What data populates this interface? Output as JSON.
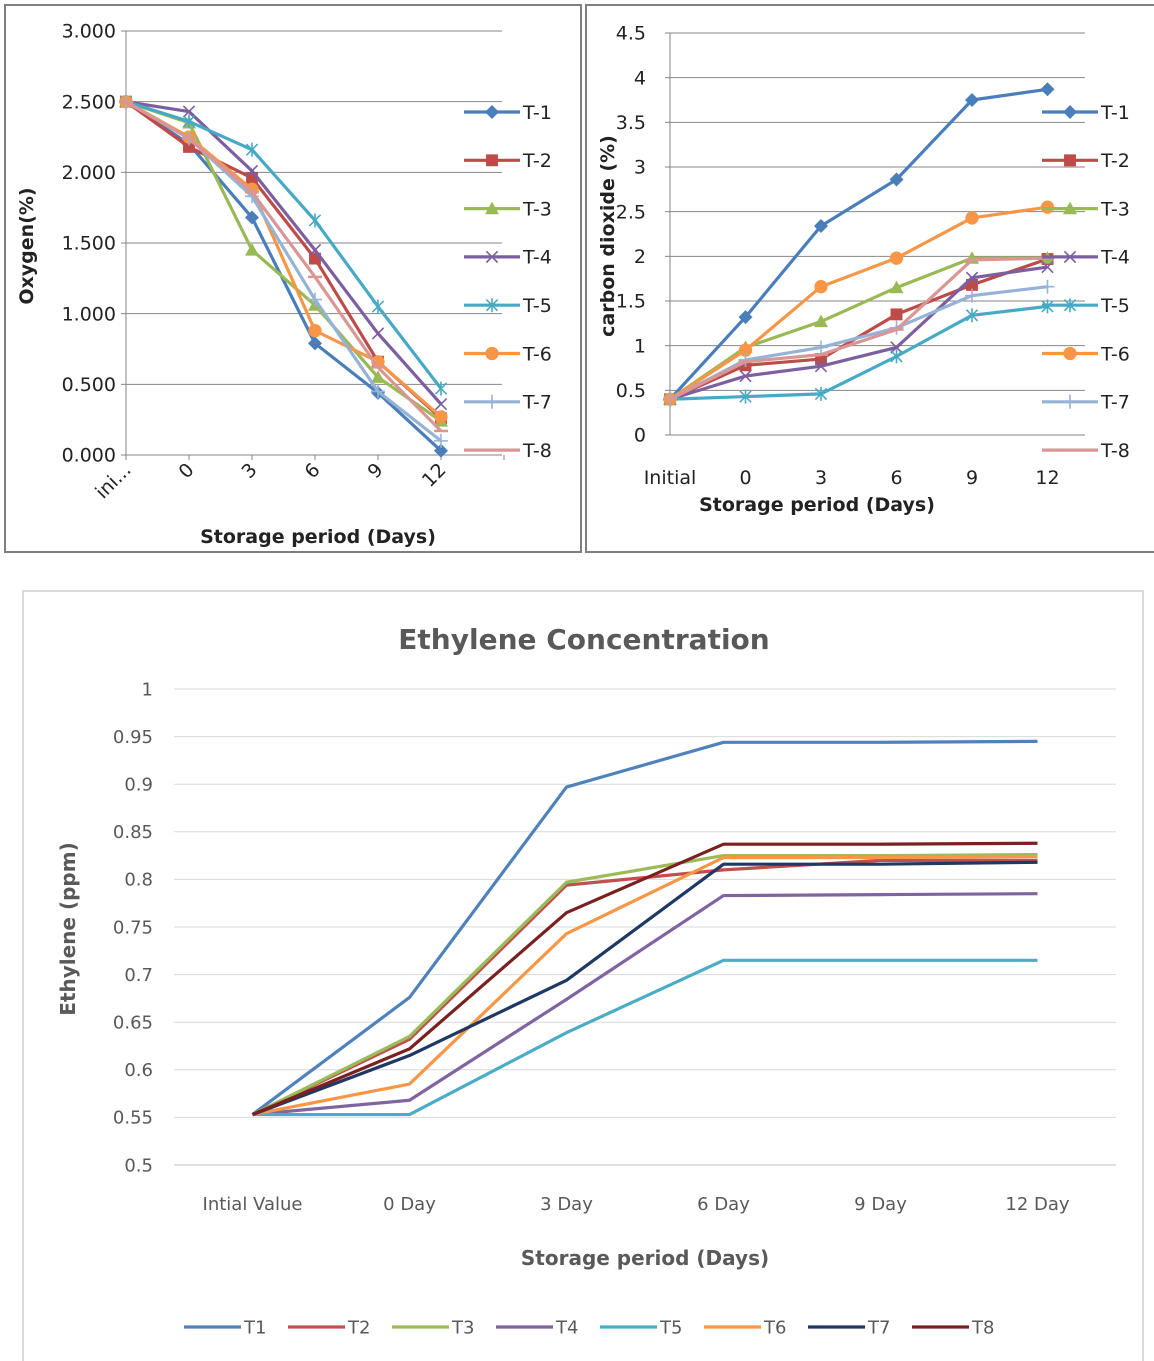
{
  "chart_data": [
    {
      "type": "line",
      "title": "",
      "xlabel": "Storage period (Days)",
      "ylabel": "Oxygen(%)",
      "categories": [
        "ini...",
        "0",
        "3",
        "6",
        "9",
        "12"
      ],
      "ylim": [
        0,
        3
      ],
      "yticks": [
        "0.000",
        "0.500",
        "1.000",
        "1.500",
        "2.000",
        "2.500",
        "3.000"
      ],
      "grid": true,
      "legend": "right",
      "markers": true,
      "series": [
        {
          "name": "T-1",
          "color": "#4a7ebb",
          "marker": "diamond",
          "values": [
            2.5,
            2.2,
            1.68,
            0.79,
            0.44,
            0.03
          ]
        },
        {
          "name": "T-2",
          "color": "#be4b48",
          "marker": "square",
          "values": [
            2.5,
            2.18,
            1.96,
            1.39,
            0.66,
            0.26
          ]
        },
        {
          "name": "T-3",
          "color": "#98b954",
          "marker": "triangle",
          "values": [
            2.5,
            2.35,
            1.45,
            1.06,
            0.55,
            0.24
          ]
        },
        {
          "name": "T-4",
          "color": "#7d5fa0",
          "marker": "x",
          "values": [
            2.5,
            2.43,
            2.01,
            1.45,
            0.86,
            0.36
          ]
        },
        {
          "name": "T-5",
          "color": "#46aac5",
          "marker": "star",
          "values": [
            2.5,
            2.36,
            2.16,
            1.66,
            1.05,
            0.47
          ]
        },
        {
          "name": "T-6",
          "color": "#f79646",
          "marker": "circle",
          "values": [
            2.5,
            2.25,
            1.88,
            0.88,
            0.66,
            0.27
          ]
        },
        {
          "name": "T-7",
          "color": "#95b3d7",
          "marker": "plus",
          "values": [
            2.5,
            2.24,
            1.83,
            1.1,
            0.45,
            0.1
          ]
        },
        {
          "name": "T-8",
          "color": "#d99694",
          "marker": "dash",
          "values": [
            2.5,
            2.24,
            1.86,
            1.26,
            0.62,
            0.17
          ]
        }
      ]
    },
    {
      "type": "line",
      "title": "",
      "xlabel": "Storage period (Days)",
      "ylabel": "carbon dioxide (%)",
      "categories": [
        "Initial",
        "0",
        "3",
        "6",
        "9",
        "12"
      ],
      "ylim": [
        0,
        4.5
      ],
      "yticks": [
        "0",
        "0.5",
        "1",
        "1.5",
        "2",
        "2.5",
        "3",
        "3.5",
        "4",
        "4.5"
      ],
      "grid": true,
      "legend": "right",
      "markers": true,
      "series": [
        {
          "name": "T-1",
          "color": "#4a7ebb",
          "marker": "diamond",
          "values": [
            0.4,
            1.32,
            2.34,
            2.86,
            3.75,
            3.87
          ]
        },
        {
          "name": "T-2",
          "color": "#be4b48",
          "marker": "square",
          "values": [
            0.4,
            0.78,
            0.85,
            1.35,
            1.68,
            1.97
          ]
        },
        {
          "name": "T-3",
          "color": "#98b954",
          "marker": "triangle",
          "values": [
            0.4,
            0.98,
            1.27,
            1.65,
            1.98,
            1.98
          ]
        },
        {
          "name": "T-4",
          "color": "#7d5fa0",
          "marker": "x",
          "values": [
            0.4,
            0.66,
            0.77,
            0.98,
            1.76,
            1.88
          ]
        },
        {
          "name": "T-5",
          "color": "#46aac5",
          "marker": "star",
          "values": [
            0.4,
            0.43,
            0.46,
            0.88,
            1.34,
            1.44
          ]
        },
        {
          "name": "T-6",
          "color": "#f79646",
          "marker": "circle",
          "values": [
            0.4,
            0.95,
            1.66,
            1.98,
            2.43,
            2.55
          ]
        },
        {
          "name": "T-7",
          "color": "#95b3d7",
          "marker": "plus",
          "values": [
            0.4,
            0.84,
            0.98,
            1.2,
            1.56,
            1.66
          ]
        },
        {
          "name": "T-8",
          "color": "#d99694",
          "marker": "dash",
          "values": [
            0.4,
            0.82,
            0.9,
            1.18,
            1.96,
            1.98
          ]
        }
      ]
    },
    {
      "type": "line",
      "title": "Ethylene Concentration",
      "xlabel": "Storage period (Days)",
      "ylabel": "Ethylene (ppm)",
      "categories": [
        "Intial Value",
        "0 Day",
        "3 Day",
        "6 Day",
        "9 Day",
        "12 Day"
      ],
      "ylim": [
        0.5,
        1
      ],
      "yticks": [
        "0.5",
        "0.55",
        "0.6",
        "0.65",
        "0.7",
        "0.75",
        "0.8",
        "0.85",
        "0.9",
        "0.95",
        "1"
      ],
      "grid": true,
      "legend": "bottom",
      "markers": false,
      "series": [
        {
          "name": "T1",
          "color": "#4f81bd",
          "values": [
            0.553,
            0.676,
            0.897,
            0.944,
            0.944,
            0.945
          ]
        },
        {
          "name": "T2",
          "color": "#c0504d",
          "values": [
            0.553,
            0.632,
            0.794,
            0.81,
            0.82,
            0.82
          ]
        },
        {
          "name": "T3",
          "color": "#9bbb59",
          "values": [
            0.553,
            0.635,
            0.797,
            0.825,
            0.825,
            0.826
          ]
        },
        {
          "name": "T4",
          "color": "#8064a2",
          "values": [
            0.553,
            0.568,
            0.674,
            0.783,
            0.784,
            0.785
          ]
        },
        {
          "name": "T5",
          "color": "#4bacc6",
          "values": [
            0.553,
            0.553,
            0.639,
            0.715,
            0.715,
            0.715
          ]
        },
        {
          "name": "T6",
          "color": "#f79646",
          "values": [
            0.553,
            0.585,
            0.743,
            0.823,
            0.823,
            0.824
          ]
        },
        {
          "name": "T7",
          "color": "#1f3864",
          "values": [
            0.553,
            0.615,
            0.694,
            0.816,
            0.816,
            0.818
          ]
        },
        {
          "name": "T8",
          "color": "#7b2020",
          "values": [
            0.553,
            0.622,
            0.765,
            0.837,
            0.837,
            0.838
          ]
        }
      ]
    }
  ]
}
